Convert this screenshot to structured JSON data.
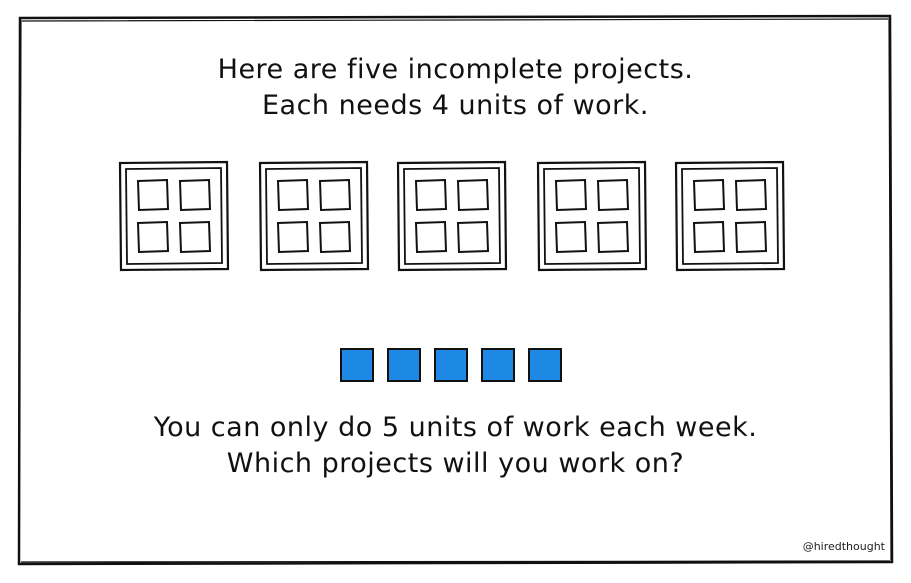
{
  "intro": {
    "line1": "Here are five incomplete projects.",
    "line2": "Each needs 4 units of work."
  },
  "projects": [
    {
      "id": 1,
      "units_needed": 4
    },
    {
      "id": 2,
      "units_needed": 4
    },
    {
      "id": 3,
      "units_needed": 4
    },
    {
      "id": 4,
      "units_needed": 4
    },
    {
      "id": 5,
      "units_needed": 4
    }
  ],
  "work_units_available": 5,
  "question": {
    "line1": "You can only do 5 units of work each week.",
    "line2": "Which projects will you work on?"
  },
  "credit": "@hiredthought",
  "colors": {
    "work_unit_fill": "#1e88e5",
    "stroke": "#111111",
    "background": "#ffffff"
  }
}
